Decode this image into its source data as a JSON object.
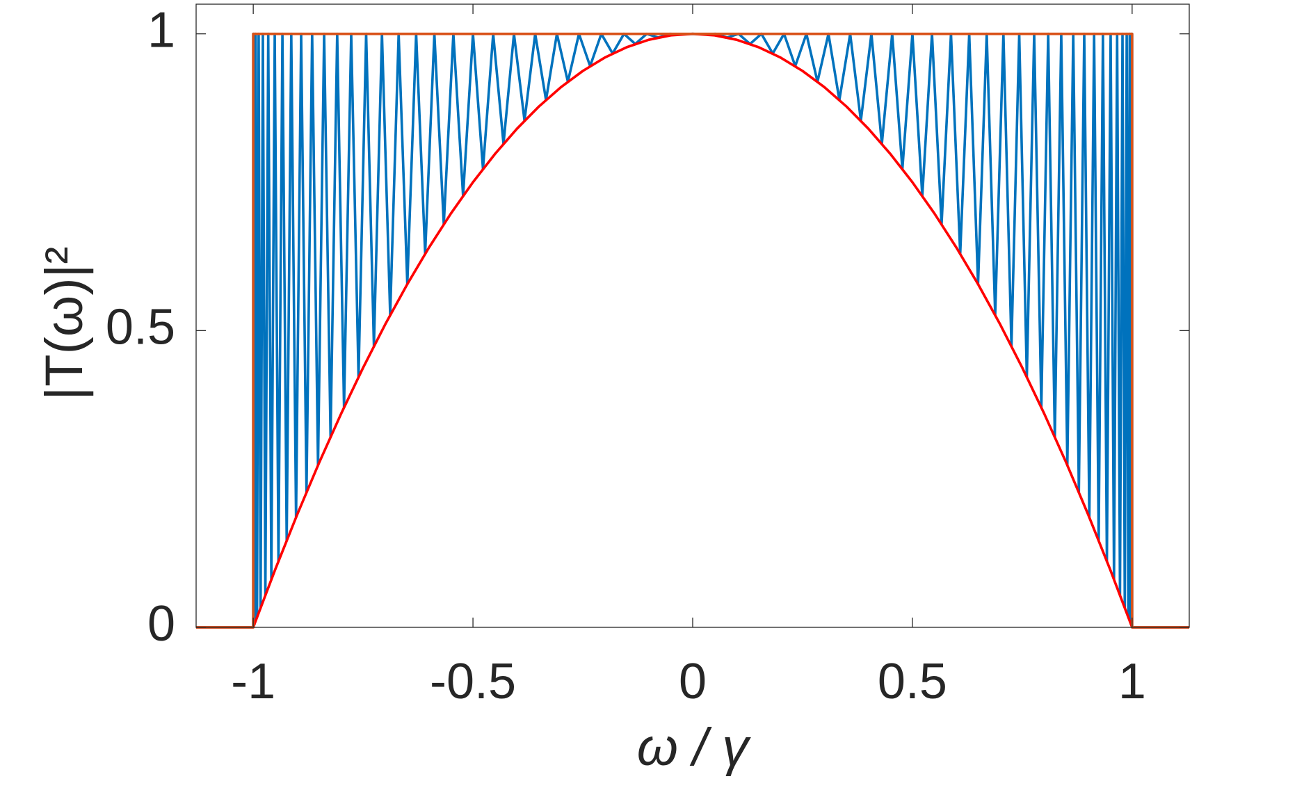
{
  "chart_data": {
    "type": "line",
    "x_label": "ω / γ",
    "y_label": "|T(ω)|²",
    "xlim": [
      -1.13,
      1.13
    ],
    "ylim": [
      0,
      1.05
    ],
    "xticks": [
      -1,
      -0.5,
      0,
      0.5,
      1
    ],
    "yticks": [
      0,
      0.5,
      1
    ],
    "grid": false,
    "box": true,
    "series": [
      {
        "color": "#0072BD",
        "x": [
          -1.13,
          -1,
          -1,
          -0.9997,
          -0.9986,
          -0.9969,
          -0.9945,
          -0.9914,
          -0.9877,
          -0.9833,
          -0.9781,
          -0.9724,
          -0.9659,
          -0.9588,
          -0.9511,
          -0.9426,
          -0.9336,
          -0.9239,
          -0.9135,
          -0.9026,
          -0.891,
          -0.8788,
          -0.866,
          -0.8526,
          -0.8387,
          -0.8241,
          -0.809,
          -0.7934,
          -0.7771,
          -0.7604,
          -0.7431,
          -0.7254,
          -0.7071,
          -0.6884,
          -0.6691,
          -0.6494,
          -0.6293,
          -0.6088,
          -0.5878,
          -0.5664,
          -0.5446,
          -0.5225,
          -0.5,
          -0.4772,
          -0.454,
          -0.4305,
          -0.4067,
          -0.3827,
          -0.3584,
          -0.3338,
          -0.309,
          -0.284,
          -0.2588,
          -0.2334,
          -0.2079,
          -0.1822,
          -0.1564,
          -0.1305,
          -0.1045,
          -0.0785,
          -0.0523,
          -0.0262,
          0,
          0.0262,
          0.0523,
          0.0785,
          0.1045,
          0.1305,
          0.1564,
          0.1822,
          0.2079,
          0.2334,
          0.2588,
          0.284,
          0.309,
          0.3338,
          0.3584,
          0.3827,
          0.4067,
          0.4305,
          0.454,
          0.4772,
          0.5,
          0.5225,
          0.5446,
          0.5664,
          0.5878,
          0.6088,
          0.6293,
          0.6494,
          0.6691,
          0.6884,
          0.7071,
          0.7254,
          0.7431,
          0.7604,
          0.7771,
          0.7934,
          0.809,
          0.8241,
          0.8387,
          0.8526,
          0.866,
          0.8788,
          0.891,
          0.9026,
          0.9135,
          0.9239,
          0.9336,
          0.9426,
          0.9511,
          0.9588,
          0.9659,
          0.9724,
          0.9781,
          0.9833,
          0.9877,
          0.9914,
          0.9945,
          0.9969,
          0.9986,
          0.9997,
          1,
          1,
          1.13
        ],
        "values": [
          0,
          0,
          1,
          0.0007,
          1,
          0.0062,
          1,
          0.017,
          1,
          0.0332,
          1,
          0.0545,
          1,
          0.0807,
          1,
          0.1114,
          1,
          0.1465,
          1,
          0.1853,
          1,
          0.2277,
          1,
          0.273,
          1,
          0.3208,
          1,
          0.3706,
          1,
          0.4217,
          1,
          0.4739,
          1,
          0.5262,
          1,
          0.5782,
          1,
          0.6295,
          1,
          0.6791,
          1,
          0.7269,
          1,
          0.7723,
          1,
          0.8147,
          1,
          0.8536,
          1,
          0.8885,
          1,
          0.9193,
          1,
          0.9456,
          1,
          0.9669,
          1,
          0.9829,
          1,
          0.9938,
          1,
          0.9993,
          1,
          0.9993,
          1,
          0.9938,
          1,
          0.9829,
          1,
          0.9669,
          1,
          0.9456,
          1,
          0.9193,
          1,
          0.8885,
          1,
          0.8536,
          1,
          0.8147,
          1,
          0.7723,
          1,
          0.7269,
          1,
          0.6791,
          1,
          0.6295,
          1,
          0.5782,
          1,
          0.5262,
          1,
          0.4739,
          1,
          0.4217,
          1,
          0.3706,
          1,
          0.3208,
          1,
          0.273,
          1,
          0.2277,
          1,
          0.1853,
          1,
          0.1465,
          1,
          0.1114,
          1,
          0.0807,
          1,
          0.0545,
          1,
          0.0332,
          1,
          0.017,
          1,
          0.0062,
          1,
          0.0007,
          1,
          0,
          0
        ]
      },
      {
        "color": "#FF0000",
        "x": [
          -1.13,
          -1,
          -0.95,
          -0.9,
          -0.85,
          -0.8,
          -0.75,
          -0.7,
          -0.65,
          -0.6,
          -0.55,
          -0.5,
          -0.45,
          -0.4,
          -0.35,
          -0.3,
          -0.25,
          -0.2,
          -0.15,
          -0.1,
          -0.05,
          0,
          0.05,
          0.1,
          0.15,
          0.2,
          0.25,
          0.3,
          0.35,
          0.4,
          0.45,
          0.5,
          0.55,
          0.6,
          0.65,
          0.7,
          0.75,
          0.8,
          0.85,
          0.9,
          0.95,
          1,
          1.13
        ],
        "values": [
          0,
          0,
          0.0975,
          0.19,
          0.2775,
          0.36,
          0.4375,
          0.51,
          0.5775,
          0.64,
          0.6975,
          0.75,
          0.7975,
          0.84,
          0.8775,
          0.91,
          0.9375,
          0.96,
          0.9775,
          0.99,
          0.9975,
          1,
          0.9975,
          0.99,
          0.9775,
          0.96,
          0.9375,
          0.91,
          0.8775,
          0.84,
          0.7975,
          0.75,
          0.6975,
          0.64,
          0.5775,
          0.51,
          0.4375,
          0.36,
          0.2775,
          0.19,
          0.0975,
          0,
          0
        ]
      },
      {
        "color": "#D95319",
        "x": [
          -1.13,
          -1,
          -1,
          1,
          1,
          1.13
        ],
        "values": [
          0,
          0,
          1,
          1,
          0,
          0
        ]
      }
    ]
  }
}
